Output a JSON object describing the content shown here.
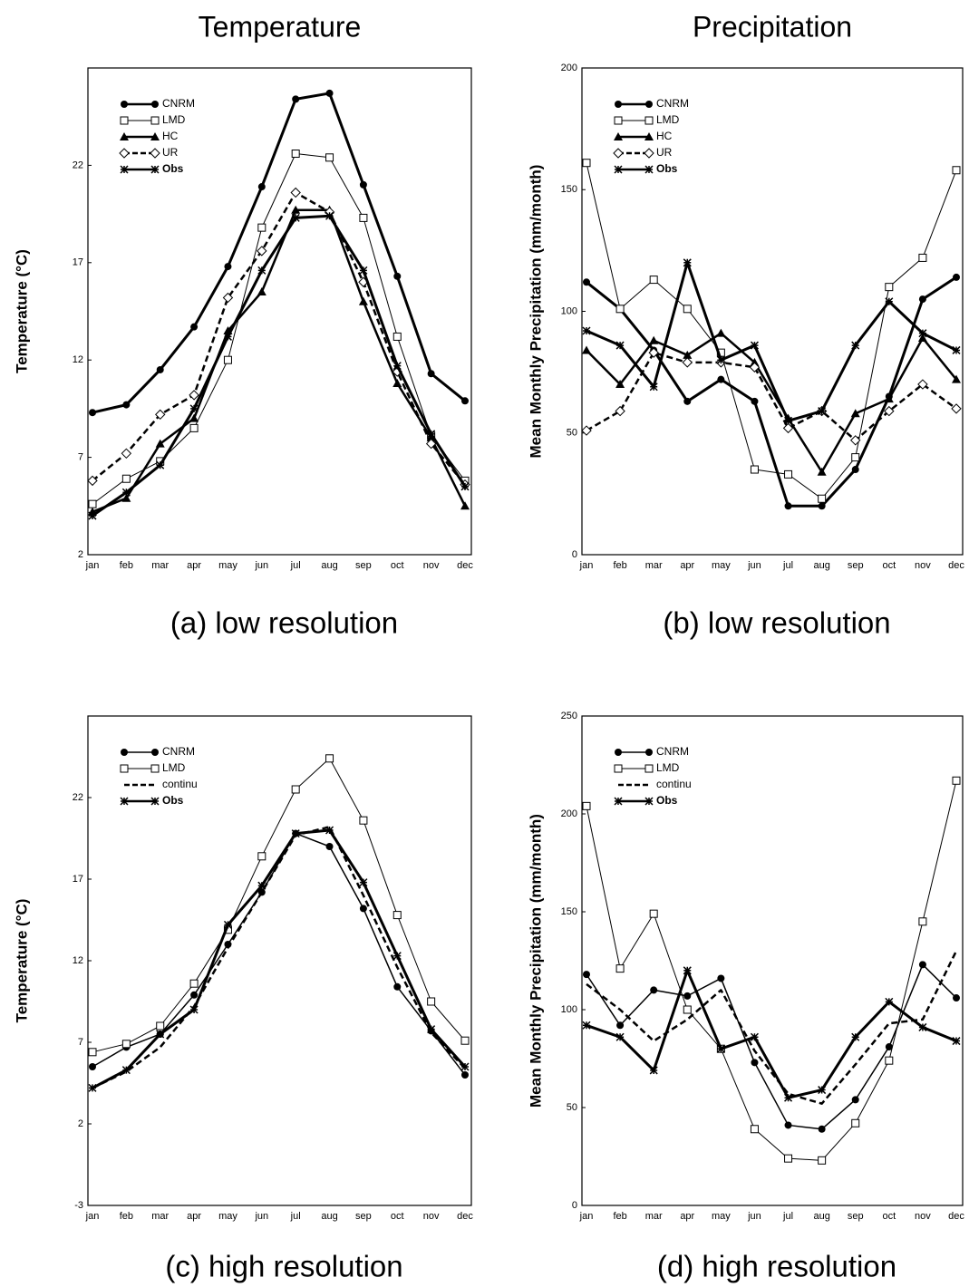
{
  "chart_data": [
    {
      "type": "line",
      "title": "Temperature",
      "ylabel": "Temperature (°C)",
      "caption": "(a) low resolution",
      "categories": [
        "jan",
        "feb",
        "mar",
        "apr",
        "may",
        "jun",
        "jul",
        "aug",
        "sep",
        "oct",
        "nov",
        "dec"
      ],
      "ylim": [
        2,
        27
      ],
      "yticks": [
        2,
        7,
        12,
        17,
        22
      ],
      "legend": "upper left",
      "series": [
        {
          "name": "CNRM",
          "color": "#000000",
          "marker": "circle-filled",
          "width": 3,
          "values": [
            9.3,
            9.7,
            11.5,
            13.7,
            16.8,
            20.9,
            25.4,
            25.7,
            21.0,
            16.3,
            11.3,
            9.9
          ]
        },
        {
          "name": "LMD",
          "color": "#000000",
          "marker": "square-open",
          "width": 1,
          "values": [
            4.6,
            5.9,
            6.8,
            8.5,
            12.0,
            18.8,
            22.6,
            22.4,
            19.3,
            13.2,
            8.1,
            5.8
          ]
        },
        {
          "name": "HC",
          "color": "#000000",
          "marker": "triangle-filled",
          "width": 2.5,
          "values": [
            4.2,
            4.9,
            7.7,
            9.0,
            13.5,
            15.5,
            19.7,
            19.7,
            15.0,
            10.8,
            8.0,
            4.5
          ]
        },
        {
          "name": "UR",
          "color": "#000000",
          "marker": "diamond-open",
          "width": 2.5,
          "dash": true,
          "values": [
            5.8,
            7.2,
            9.2,
            10.2,
            15.2,
            17.6,
            20.6,
            19.6,
            16.0,
            11.4,
            7.7,
            5.6
          ]
        },
        {
          "name": "Obs",
          "color": "#000000",
          "marker": "star",
          "width": 3,
          "bold": true,
          "values": [
            4.0,
            5.2,
            6.6,
            9.5,
            13.2,
            16.6,
            19.3,
            19.4,
            16.6,
            11.7,
            8.2,
            5.5
          ]
        }
      ]
    },
    {
      "type": "line",
      "title": "Precipitation",
      "ylabel": "Mean Monthly Precipitation (mm/month)",
      "caption": "(b) low resolution",
      "categories": [
        "jan",
        "feb",
        "mar",
        "apr",
        "may",
        "jun",
        "jul",
        "aug",
        "sep",
        "oct",
        "nov",
        "dec"
      ],
      "ylim": [
        0,
        200
      ],
      "yticks": [
        0,
        50,
        100,
        150,
        200
      ],
      "legend": "upper left",
      "series": [
        {
          "name": "CNRM",
          "color": "#000000",
          "marker": "circle-filled",
          "width": 3,
          "values": [
            112,
            101,
            84,
            63,
            72,
            63,
            20,
            20,
            35,
            65,
            105,
            114
          ]
        },
        {
          "name": "LMD",
          "color": "#000000",
          "marker": "square-open",
          "width": 1,
          "values": [
            161,
            101,
            113,
            101,
            83,
            35,
            33,
            23,
            40,
            110,
            122,
            158
          ]
        },
        {
          "name": "HC",
          "color": "#000000",
          "marker": "triangle-filled",
          "width": 2.5,
          "values": [
            84,
            70,
            88,
            82,
            91,
            79,
            56,
            34,
            58,
            64,
            89,
            72
          ]
        },
        {
          "name": "UR",
          "color": "#000000",
          "marker": "diamond-open",
          "width": 2.5,
          "dash": true,
          "values": [
            51,
            59,
            83,
            79,
            79,
            77,
            52,
            59,
            47,
            59,
            70,
            60
          ]
        },
        {
          "name": "Obs",
          "color": "#000000",
          "marker": "star",
          "width": 3,
          "bold": true,
          "values": [
            92,
            86,
            69,
            120,
            80,
            86,
            55,
            59,
            86,
            104,
            91,
            84
          ]
        }
      ]
    },
    {
      "type": "line",
      "ylabel": "Temperature (°C)",
      "caption": "(c) high resolution",
      "categories": [
        "jan",
        "feb",
        "mar",
        "apr",
        "may",
        "jun",
        "jul",
        "aug",
        "sep",
        "oct",
        "nov",
        "dec"
      ],
      "ylim": [
        -3,
        27
      ],
      "yticks": [
        -3,
        2,
        7,
        12,
        17,
        22
      ],
      "legend": "upper left",
      "series": [
        {
          "name": "CNRM",
          "color": "#000000",
          "marker": "circle-filled",
          "width": 1.5,
          "values": [
            5.5,
            6.7,
            7.5,
            9.9,
            13.0,
            16.2,
            19.8,
            19.0,
            15.2,
            10.4,
            7.7,
            5.0
          ]
        },
        {
          "name": "LMD",
          "color": "#000000",
          "marker": "square-open",
          "width": 1,
          "values": [
            6.4,
            6.9,
            8.0,
            10.6,
            13.9,
            18.4,
            22.5,
            24.4,
            20.6,
            14.8,
            9.5,
            7.1
          ]
        },
        {
          "name": "continu",
          "color": "#000000",
          "marker": "none",
          "width": 2.5,
          "dash": true,
          "values": [
            4.2,
            5.2,
            6.7,
            9.2,
            12.8,
            16.2,
            19.7,
            20.2,
            16.0,
            11.6,
            7.6,
            5.4
          ]
        },
        {
          "name": "Obs",
          "color": "#000000",
          "marker": "star",
          "width": 3,
          "bold": true,
          "values": [
            4.2,
            5.3,
            7.5,
            9.0,
            14.2,
            16.6,
            19.8,
            20.0,
            16.8,
            12.3,
            7.8,
            5.5
          ]
        }
      ]
    },
    {
      "type": "line",
      "ylabel": "Mean Monthly Precipitation (mm/month)",
      "caption": "(d) high resolution",
      "categories": [
        "jan",
        "feb",
        "mar",
        "apr",
        "may",
        "jun",
        "jul",
        "aug",
        "sep",
        "oct",
        "nov",
        "dec"
      ],
      "ylim": [
        0,
        250
      ],
      "yticks": [
        0,
        50,
        100,
        150,
        200,
        250
      ],
      "legend": "upper left",
      "series": [
        {
          "name": "CNRM",
          "color": "#000000",
          "marker": "circle-filled",
          "width": 1.5,
          "values": [
            118,
            92,
            110,
            107,
            116,
            73,
            41,
            39,
            54,
            81,
            123,
            106
          ]
        },
        {
          "name": "LMD",
          "color": "#000000",
          "marker": "square-open",
          "width": 1,
          "values": [
            204,
            121,
            149,
            100,
            80,
            39,
            24,
            23,
            42,
            74,
            145,
            217
          ]
        },
        {
          "name": "continu",
          "color": "#000000",
          "marker": "none",
          "width": 2.5,
          "dash": true,
          "values": [
            113,
            100,
            84,
            95,
            110,
            79,
            57,
            52,
            72,
            93,
            95,
            130
          ]
        },
        {
          "name": "Obs",
          "color": "#000000",
          "marker": "star",
          "width": 3,
          "bold": true,
          "values": [
            92,
            86,
            69,
            120,
            80,
            86,
            55,
            59,
            86,
            104,
            91,
            84
          ]
        }
      ]
    }
  ]
}
